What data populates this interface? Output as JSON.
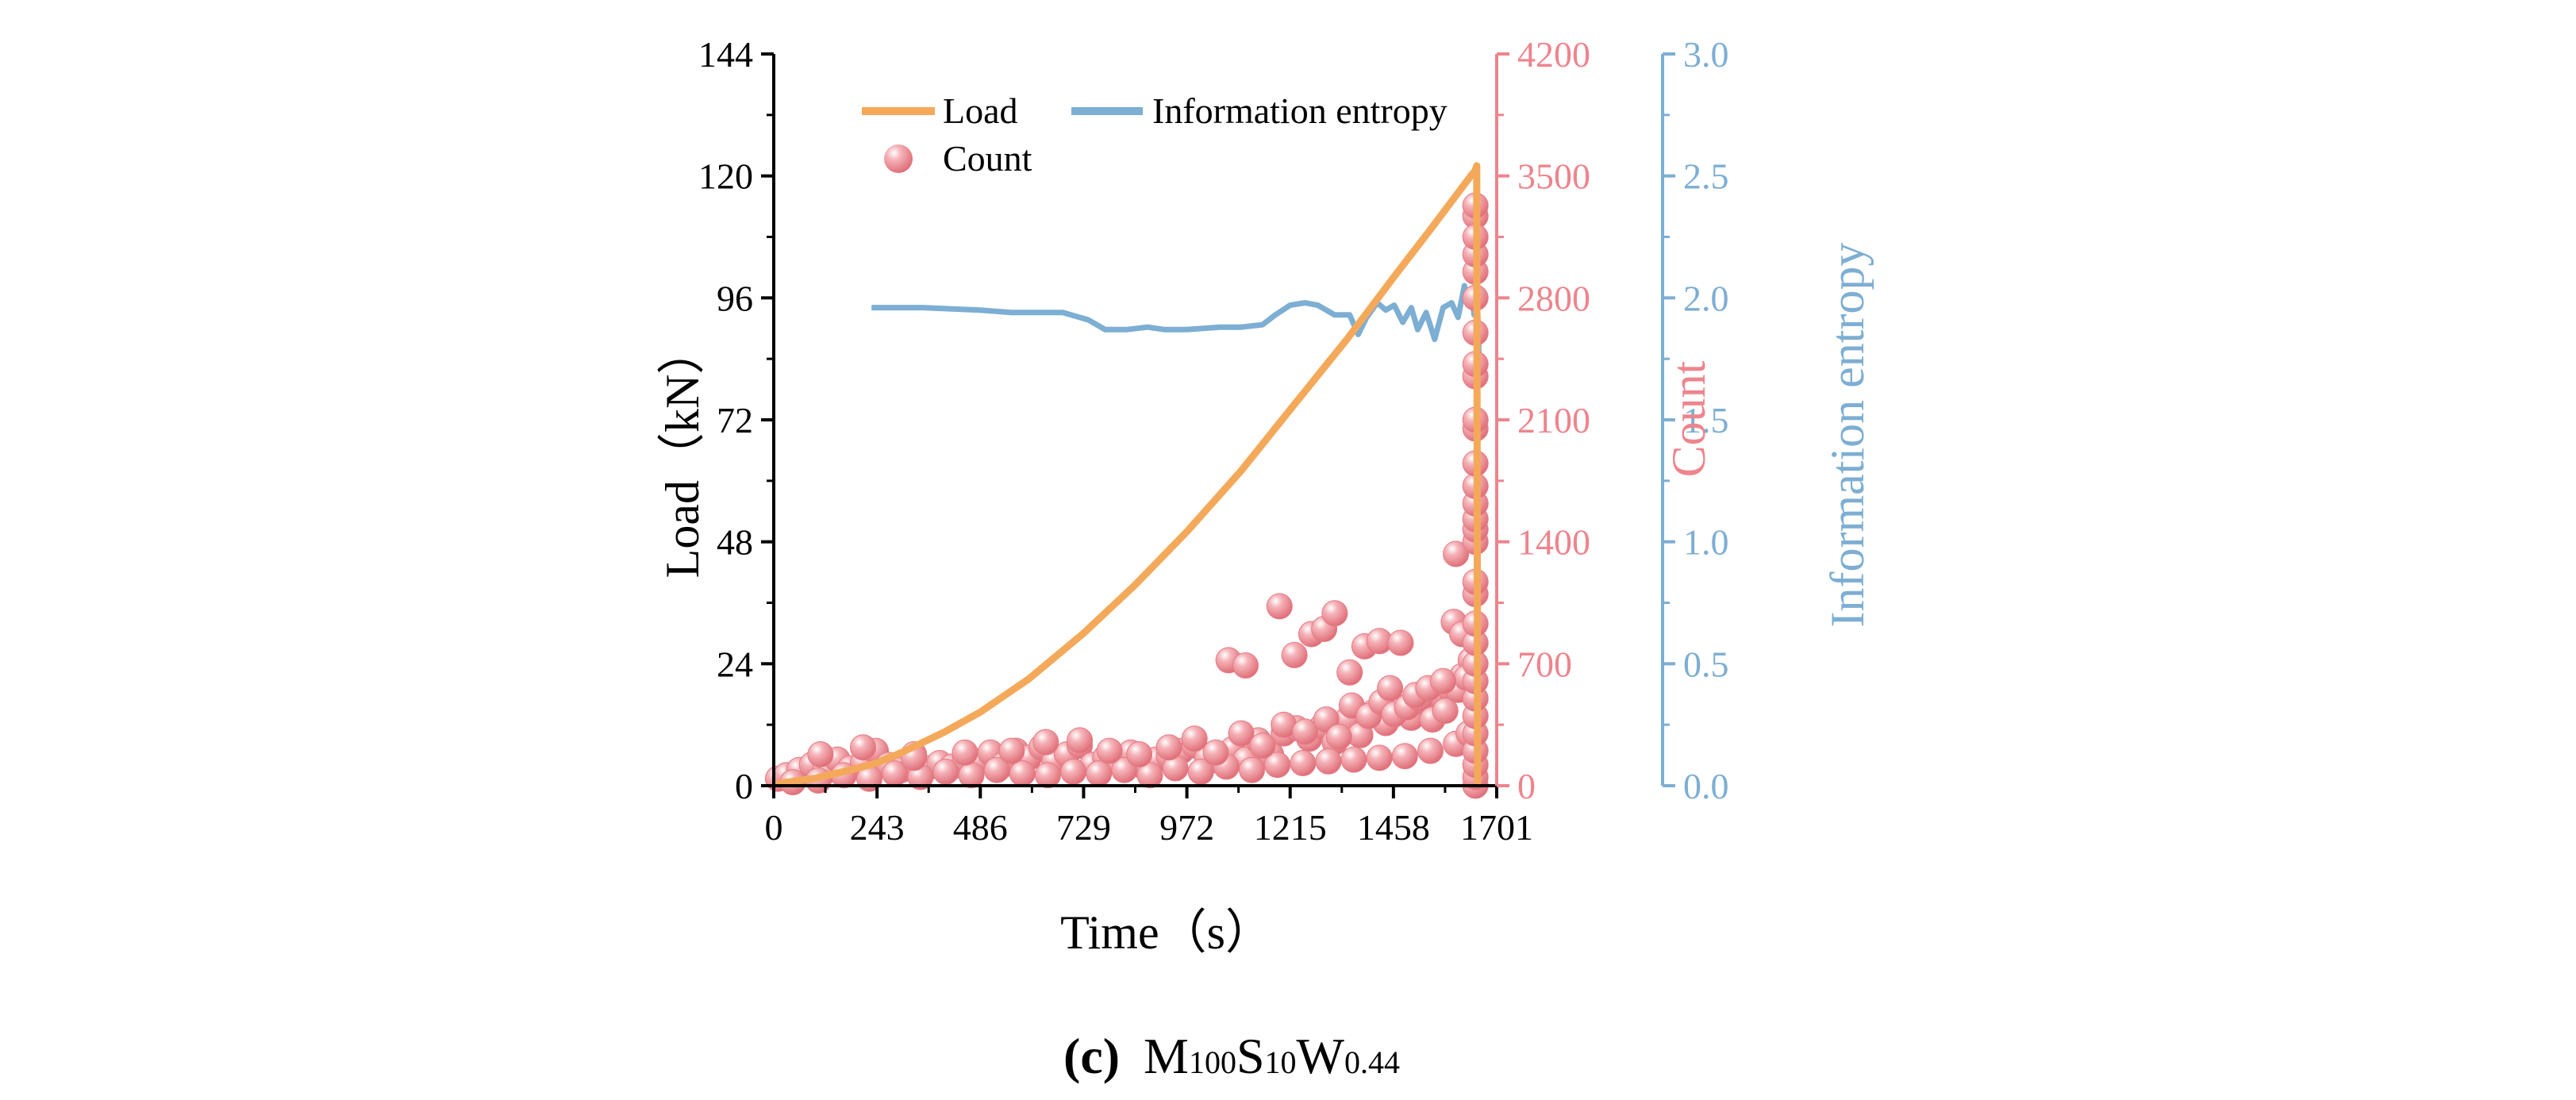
{
  "caption": {
    "panel": "(c)",
    "m": "M",
    "m_sub": "100",
    "s": "S",
    "s_sub": "10",
    "w": "W",
    "w_sub": "0.44"
  },
  "colors": {
    "load": "#f4a95a",
    "count": "#ee848d",
    "entropy": "#7daed3",
    "axis": "#000000"
  },
  "chart_data": {
    "type": "line+scatter",
    "xlabel": "Time（s）",
    "xlim": [
      0,
      1701
    ],
    "x_ticks": [
      0,
      243,
      486,
      729,
      972,
      1215,
      1458,
      1701
    ],
    "x_tick_labels": [
      "0",
      "243",
      "486",
      "729",
      "972",
      "1215",
      "1458",
      "1701"
    ],
    "axes": {
      "load": {
        "label": "Load（kN）",
        "lim": [
          0,
          144
        ],
        "ticks": [
          0,
          24,
          48,
          72,
          96,
          120,
          144
        ],
        "tick_labels": [
          "0",
          "24",
          "48",
          "72",
          "96",
          "120",
          "144"
        ]
      },
      "count": {
        "label": "Count",
        "lim": [
          0,
          4200
        ],
        "ticks": [
          0,
          700,
          1400,
          2100,
          2800,
          3500,
          4200
        ],
        "tick_labels": [
          "0",
          "700",
          "1400",
          "2100",
          "2800",
          "3500",
          "4200"
        ]
      },
      "entropy": {
        "label": "Information entropy",
        "lim": [
          0,
          3.0
        ],
        "ticks": [
          0,
          0.5,
          1.0,
          1.5,
          2.0,
          2.5,
          3.0
        ],
        "tick_labels": [
          "0.0",
          "0.5",
          "1.0",
          "1.5",
          "2.0",
          "2.5",
          "3.0"
        ]
      }
    },
    "legend": {
      "position": "top-left",
      "entries": {
        "load": "Load",
        "entropy": "Information entropy",
        "count": "Count"
      }
    },
    "series": [
      {
        "name": "Load",
        "axis": "load",
        "kind": "line",
        "x": [
          0,
          100,
          200,
          243,
          300,
          400,
          486,
          600,
          729,
          850,
          972,
          1100,
          1215,
          1350,
          1458,
          1550,
          1640,
          1650,
          1654,
          1656
        ],
        "y": [
          0.3,
          1.5,
          3.5,
          4.5,
          6.5,
          10.5,
          14.5,
          21,
          30,
          39.5,
          50,
          62,
          74,
          88,
          100,
          110,
          120,
          121,
          122,
          0
        ]
      },
      {
        "name": "Information entropy",
        "axis": "entropy",
        "kind": "line",
        "x": [
          230,
          350,
          486,
          560,
          600,
          680,
          740,
          780,
          830,
          880,
          920,
          972,
          1050,
          1100,
          1150,
          1180,
          1215,
          1250,
          1280,
          1320,
          1355,
          1375,
          1395,
          1420,
          1440,
          1460,
          1480,
          1500,
          1515,
          1535,
          1555,
          1575,
          1595,
          1610,
          1625,
          1635,
          1642,
          1648,
          1652,
          1656,
          1660
        ],
        "y": [
          1.96,
          1.96,
          1.95,
          1.94,
          1.94,
          1.94,
          1.91,
          1.87,
          1.87,
          1.88,
          1.87,
          1.87,
          1.88,
          1.88,
          1.89,
          1.93,
          1.97,
          1.98,
          1.97,
          1.93,
          1.93,
          1.85,
          1.92,
          1.98,
          1.95,
          1.97,
          1.9,
          1.96,
          1.87,
          1.94,
          1.83,
          1.96,
          1.98,
          1.92,
          2.05,
          1.98,
          2.01,
          1.93,
          2.0,
          1.95,
          1.72
        ]
      },
      {
        "name": "Count",
        "axis": "count",
        "kind": "scatter",
        "x": [
          10,
          30,
          60,
          90,
          120,
          150,
          180,
          210,
          240,
          270,
          300,
          330,
          360,
          390,
          420,
          450,
          480,
          510,
          540,
          570,
          600,
          630,
          660,
          690,
          720,
          750,
          780,
          810,
          840,
          870,
          900,
          930,
          960,
          990,
          1020,
          1050,
          1080,
          1110,
          1140,
          1170,
          1200,
          1230,
          1260,
          1290,
          1320,
          1350,
          1380,
          1410,
          1440,
          1470,
          1500,
          1530,
          1560,
          1590,
          1620,
          1640,
          45,
          105,
          165,
          225,
          285,
          345,
          405,
          465,
          525,
          585,
          645,
          705,
          765,
          825,
          885,
          945,
          1005,
          1065,
          1125,
          1185,
          1245,
          1305,
          1365,
          1425,
          1485,
          1545,
          1605,
          1635,
          110,
          210,
          330,
          450,
          560,
          640,
          720,
          790,
          860,
          930,
          990,
          1040,
          1100,
          1150,
          1200,
          1250,
          1300,
          1330,
          1360,
          1400,
          1430,
          1460,
          1490,
          1520,
          1550,
          1580,
          1610,
          1630,
          1070,
          1110,
          1190,
          1225,
          1265,
          1295,
          1320,
          1355,
          1390,
          1425,
          1450,
          1475,
          1510,
          1540,
          1575,
          1605,
          1600,
          1620,
          1651,
          1651,
          1651,
          1651,
          1651,
          1651,
          1651,
          1651,
          1651,
          1651,
          1651,
          1651,
          1651,
          1651,
          1651,
          1651,
          1651,
          1651,
          1651,
          1651,
          1651,
          1651,
          1651,
          1651,
          1651,
          1651,
          1651,
          1651,
          1651,
          1651
        ],
        "y": [
          40,
          60,
          90,
          120,
          80,
          150,
          100,
          130,
          200,
          120,
          90,
          180,
          100,
          130,
          110,
          150,
          140,
          190,
          120,
          200,
          160,
          220,
          140,
          180,
          230,
          120,
          160,
          130,
          190,
          110,
          150,
          170,
          200,
          230,
          160,
          140,
          210,
          150,
          260,
          180,
          300,
          330,
          270,
          340,
          250,
          380,
          290,
          420,
          360,
          450,
          390,
          480,
          520,
          560,
          630,
          720,
          20,
          30,
          60,
          40,
          70,
          50,
          80,
          60,
          90,
          70,
          60,
          80,
          70,
          90,
          60,
          100,
          80,
          110,
          90,
          120,
          130,
          140,
          150,
          160,
          170,
          200,
          240,
          300,
          180,
          220,
          160,
          190,
          200,
          250,
          260,
          200,
          180,
          220,
          270,
          190,
          300,
          230,
          350,
          310,
          380,
          280,
          460,
          400,
          480,
          410,
          450,
          500,
          380,
          430,
          550,
          620,
          720,
          690,
          1030,
          750,
          870,
          900,
          990,
          650,
          800,
          830,
          560,
          820,
          520,
          560,
          600,
          1330,
          940,
          870,
          0,
          50,
          120,
          200,
          300,
          400,
          500,
          600,
          700,
          820,
          930,
          1100,
          1170,
          1400,
          1470,
          1530,
          1620,
          1720,
          1850,
          2050,
          2100,
          2350,
          2420,
          2600,
          2800,
          2950,
          3050,
          3270,
          3330,
          3150
        ]
      }
    ]
  }
}
